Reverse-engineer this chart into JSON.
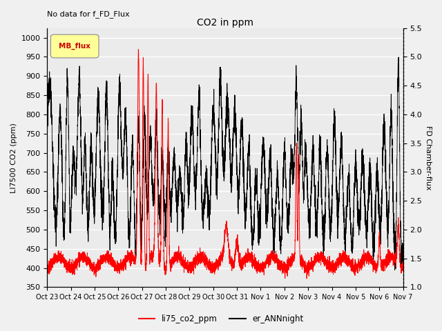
{
  "title": "CO2 in ppm",
  "top_text": "No data for f_FD_Flux",
  "ylabel_left": "LI7500 CO2 (ppm)",
  "ylabel_right": "FD Chamber-flux",
  "ylim_left": [
    350,
    1025
  ],
  "ylim_right": [
    1.0,
    5.5
  ],
  "yticks_left": [
    350,
    400,
    450,
    500,
    550,
    600,
    650,
    700,
    750,
    800,
    850,
    900,
    950,
    1000
  ],
  "yticks_right": [
    1.0,
    1.5,
    2.0,
    2.5,
    3.0,
    3.5,
    4.0,
    4.5,
    5.0,
    5.5
  ],
  "xtick_labels": [
    "Oct 23",
    "Oct 24",
    "Oct 25",
    "Oct 26",
    "Oct 27",
    "Oct 28",
    "Oct 29",
    "Oct 30",
    "Oct 31",
    "Nov 1",
    "Nov 2",
    "Nov 3",
    "Nov 4",
    "Nov 5",
    "Nov 6",
    "Nov 7"
  ],
  "legend_entries": [
    "li75_co2_ppm",
    "er_ANNnight"
  ],
  "legend_colors": [
    "#ff0000",
    "#000000"
  ],
  "line_color_red": "#ff0000",
  "line_color_black": "#000000",
  "mb_flux_box_color": "#ffff99",
  "mb_flux_text_color": "#cc0000",
  "background_color": "#ebebeb",
  "grid_color": "#ffffff",
  "n_points": 5000
}
